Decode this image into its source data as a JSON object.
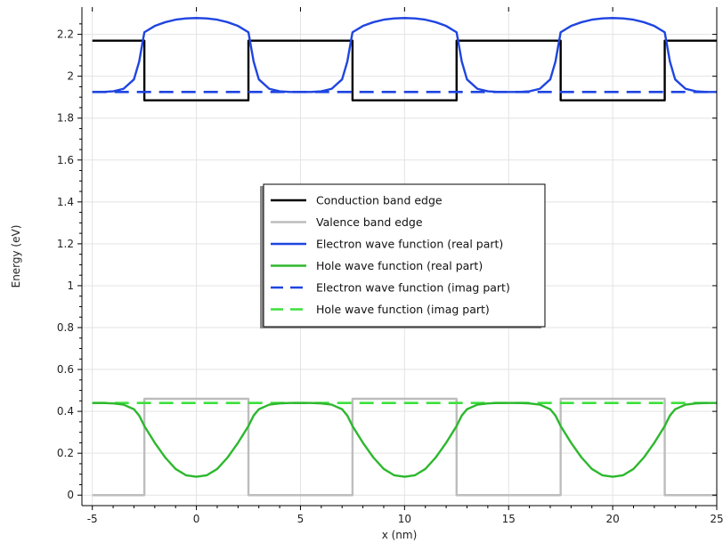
{
  "chart_data": {
    "type": "line",
    "title": "",
    "xlabel": "x (nm)",
    "ylabel": "Energy (eV)",
    "xlim": [
      -5.5,
      25
    ],
    "ylim": [
      -0.05,
      2.33
    ],
    "xticks": [
      -5,
      0,
      5,
      10,
      15,
      20,
      25
    ],
    "yticks": [
      0,
      0.2,
      0.4,
      0.6,
      0.8,
      1,
      1.2,
      1.4,
      1.6,
      1.8,
      2,
      2.2
    ],
    "xtick_labels": [
      "-5",
      "0",
      "5",
      "10",
      "15",
      "20",
      "25"
    ],
    "ytick_labels": [
      "0",
      "0.2",
      "0.4",
      "0.6",
      "0.8",
      "1",
      "1.2",
      "1.4",
      "1.6",
      "1.8",
      "2",
      "2.2"
    ],
    "grid": true,
    "legend_position": "center",
    "series": [
      {
        "name": "Conduction band edge",
        "color": "#000000",
        "style": "solid",
        "x": [
          -5,
          -2.5,
          -2.5,
          2.5,
          2.5,
          7.5,
          7.5,
          12.5,
          12.5,
          17.5,
          17.5,
          22.5,
          22.5,
          25
        ],
        "y": [
          2.17,
          2.17,
          1.885,
          1.885,
          2.17,
          2.17,
          1.885,
          1.885,
          2.17,
          2.17,
          1.885,
          1.885,
          2.17,
          2.17
        ]
      },
      {
        "name": "Valence band edge",
        "color": "#bdbdbd",
        "style": "solid",
        "x": [
          -5,
          -2.5,
          -2.5,
          2.5,
          2.5,
          7.5,
          7.5,
          12.5,
          12.5,
          17.5,
          17.5,
          22.5,
          22.5,
          25
        ],
        "y": [
          0,
          0,
          0.46,
          0.46,
          0,
          0,
          0.46,
          0.46,
          0,
          0,
          0.46,
          0.46,
          0,
          0
        ]
      },
      {
        "name": "Electron wave function (real part)",
        "color": "#1f45e0",
        "style": "solid",
        "x": [
          -5,
          -4.5,
          -4,
          -3.5,
          -3,
          -2.75,
          -2.5,
          -2,
          -1.5,
          -1,
          -0.5,
          0,
          0.5,
          1,
          1.5,
          2,
          2.5,
          2.75,
          3,
          3.5,
          4,
          4.5,
          5,
          5.5,
          6,
          6.5,
          7,
          7.25,
          7.5,
          8,
          8.5,
          9,
          9.5,
          10,
          10.5,
          11,
          11.5,
          12,
          12.5,
          12.75,
          13,
          13.5,
          14,
          14.5,
          15,
          15.5,
          16,
          16.5,
          17,
          17.25,
          17.5,
          18,
          18.5,
          19,
          19.5,
          20,
          20.5,
          21,
          21.5,
          22,
          22.5,
          22.75,
          23,
          23.5,
          24,
          24.5,
          25
        ],
        "y": [
          1.925,
          1.925,
          1.928,
          1.94,
          1.985,
          2.07,
          2.21,
          2.24,
          2.258,
          2.27,
          2.276,
          2.278,
          2.276,
          2.27,
          2.258,
          2.24,
          2.21,
          2.07,
          1.985,
          1.94,
          1.928,
          1.925,
          1.925,
          1.925,
          1.928,
          1.94,
          1.985,
          2.07,
          2.21,
          2.24,
          2.258,
          2.27,
          2.276,
          2.278,
          2.276,
          2.27,
          2.258,
          2.24,
          2.21,
          2.07,
          1.985,
          1.94,
          1.928,
          1.925,
          1.925,
          1.925,
          1.928,
          1.94,
          1.985,
          2.07,
          2.21,
          2.24,
          2.258,
          2.27,
          2.276,
          2.278,
          2.276,
          2.27,
          2.258,
          2.24,
          2.21,
          2.07,
          1.985,
          1.94,
          1.928,
          1.925,
          1.925
        ]
      },
      {
        "name": "Hole wave function (real part)",
        "color": "#2db82d",
        "style": "solid",
        "x": [
          -5,
          -4.5,
          -4,
          -3.5,
          -3,
          -2.75,
          -2.5,
          -2,
          -1.5,
          -1,
          -0.5,
          0,
          0.5,
          1,
          1.5,
          2,
          2.5,
          2.75,
          3,
          3.5,
          4,
          4.5,
          5,
          5.5,
          6,
          6.5,
          7,
          7.25,
          7.5,
          8,
          8.5,
          9,
          9.5,
          10,
          10.5,
          11,
          11.5,
          12,
          12.5,
          12.75,
          13,
          13.5,
          14,
          14.5,
          15,
          15.5,
          16,
          16.5,
          17,
          17.25,
          17.5,
          18,
          18.5,
          19,
          19.5,
          20,
          20.5,
          21,
          21.5,
          22,
          22.5,
          22.75,
          23,
          23.5,
          24,
          24.5,
          25
        ],
        "y": [
          0.44,
          0.44,
          0.438,
          0.432,
          0.41,
          0.38,
          0.33,
          0.25,
          0.18,
          0.125,
          0.095,
          0.088,
          0.095,
          0.125,
          0.18,
          0.25,
          0.33,
          0.38,
          0.41,
          0.432,
          0.438,
          0.44,
          0.44,
          0.44,
          0.438,
          0.432,
          0.41,
          0.38,
          0.33,
          0.25,
          0.18,
          0.125,
          0.095,
          0.088,
          0.095,
          0.125,
          0.18,
          0.25,
          0.33,
          0.38,
          0.41,
          0.432,
          0.438,
          0.44,
          0.44,
          0.44,
          0.438,
          0.432,
          0.41,
          0.38,
          0.33,
          0.25,
          0.18,
          0.125,
          0.095,
          0.088,
          0.095,
          0.125,
          0.18,
          0.25,
          0.33,
          0.38,
          0.41,
          0.432,
          0.438,
          0.44,
          0.44
        ]
      },
      {
        "name": "Electron wave function (imag part)",
        "color": "#1f45e0",
        "style": "dashed",
        "x": [
          -5,
          25
        ],
        "y": [
          1.925,
          1.925
        ]
      },
      {
        "name": "Hole wave function (imag part)",
        "color": "#3ce03c",
        "style": "dashed",
        "x": [
          -5,
          25
        ],
        "y": [
          0.44,
          0.44
        ]
      }
    ]
  }
}
